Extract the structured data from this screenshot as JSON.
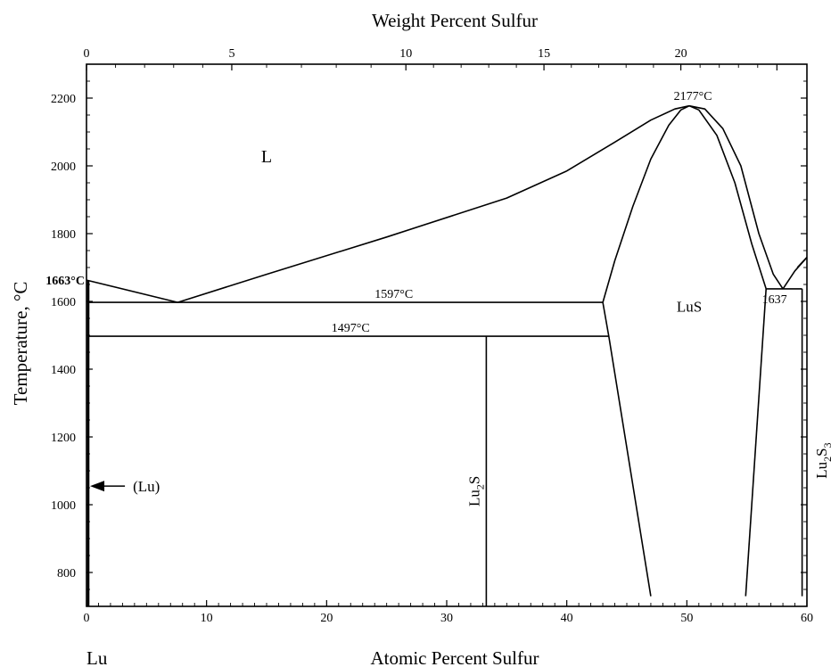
{
  "chart_data": {
    "type": "phase-diagram",
    "xlabel": "Atomic Percent Sulfur",
    "x2label": "Weight Percent Sulfur",
    "ylabel": "Temperature, °C",
    "xlim": [
      0,
      60
    ],
    "ylim": [
      700,
      2300
    ],
    "x_ticks": [
      0,
      10,
      20,
      30,
      40,
      50,
      60
    ],
    "x_tick_labels": [
      "0",
      "10",
      "20",
      "30",
      "40",
      "50",
      "60"
    ],
    "x2_ticks_at": [
      0,
      12.1,
      26.6,
      38.1,
      49.5,
      57.5
    ],
    "x2_tick_labels": [
      "0",
      "5",
      "10",
      "15",
      "20",
      ""
    ],
    "y_ticks": [
      800,
      1000,
      1200,
      1400,
      1600,
      1800,
      2000,
      2200
    ],
    "y_tick_labels": [
      "800",
      "1000",
      "1200",
      "1400",
      "1600",
      "1800",
      "2000",
      "2200"
    ],
    "left_end_label": "Lu",
    "lines": [
      {
        "name": "liquidus-left",
        "points": [
          [
            0,
            1663
          ],
          [
            7.6,
            1597
          ]
        ]
      },
      {
        "name": "liquidus-main",
        "points": [
          [
            7.6,
            1597
          ],
          [
            15,
            1680
          ],
          [
            25,
            1790
          ],
          [
            35,
            1905
          ],
          [
            40,
            1985
          ],
          [
            44,
            2070
          ],
          [
            47,
            2135
          ],
          [
            49,
            2168
          ],
          [
            50.2,
            2177
          ]
        ]
      },
      {
        "name": "lus-liquidus-right",
        "points": [
          [
            50.2,
            2177
          ],
          [
            51.5,
            2168
          ],
          [
            53,
            2110
          ],
          [
            54.5,
            2000
          ],
          [
            56,
            1800
          ],
          [
            57.2,
            1680
          ],
          [
            58,
            1637
          ]
        ]
      },
      {
        "name": "lus-solidus-left",
        "points": [
          [
            43,
            1597
          ],
          [
            44,
            1720
          ],
          [
            45.5,
            1880
          ],
          [
            47,
            2020
          ],
          [
            48.5,
            2120
          ],
          [
            49.5,
            2165
          ],
          [
            50.2,
            2177
          ]
        ]
      },
      {
        "name": "lus-solidus-right",
        "points": [
          [
            50.2,
            2177
          ],
          [
            51,
            2165
          ],
          [
            52.5,
            2090
          ],
          [
            54,
            1950
          ],
          [
            55.4,
            1770
          ],
          [
            56.6,
            1637
          ]
        ]
      },
      {
        "name": "lus-left-boundary",
        "points": [
          [
            43,
            1597
          ],
          [
            43.5,
            1497
          ],
          [
            47,
            730
          ]
        ]
      },
      {
        "name": "lus-right-boundary",
        "points": [
          [
            56.6,
            1637
          ],
          [
            54.9,
            730
          ]
        ]
      },
      {
        "name": "liquidus-far-right",
        "points": [
          [
            58,
            1637
          ],
          [
            59,
            1690
          ],
          [
            60,
            1730
          ]
        ]
      },
      {
        "name": "lu2s3-solvus",
        "points": [
          [
            59.2,
            1700
          ],
          [
            60,
            1730
          ]
        ]
      },
      {
        "name": "eutectic-1597",
        "points": [
          [
            0.15,
            1597
          ],
          [
            43,
            1597
          ]
        ]
      },
      {
        "name": "peritectoid-1497",
        "points": [
          [
            0.15,
            1497
          ],
          [
            43.5,
            1497
          ]
        ]
      },
      {
        "name": "eutectic-1637",
        "points": [
          [
            56.6,
            1637
          ],
          [
            59.6,
            1637
          ]
        ]
      },
      {
        "name": "lu2s-line",
        "points": [
          [
            33.3,
            1497
          ],
          [
            33.3,
            700
          ]
        ]
      },
      {
        "name": "lu2s3-line",
        "points": [
          [
            59.6,
            1637
          ],
          [
            59.6,
            730
          ]
        ]
      },
      {
        "name": "lu-solvus",
        "points": [
          [
            0.15,
            1663
          ],
          [
            0.15,
            700
          ]
        ]
      }
    ],
    "annotations": [
      {
        "text": "L",
        "x": 15,
        "y": 2010,
        "style": "phase-big"
      },
      {
        "text": "LuS",
        "x": 50.2,
        "y": 1570,
        "style": "phase"
      },
      {
        "text": "1663°C",
        "x": 0,
        "y": 1663,
        "style": "bold"
      },
      {
        "text": "1597°C",
        "x": 25.6,
        "y": 1610
      },
      {
        "text": "1497°C",
        "x": 22,
        "y": 1510
      },
      {
        "text": "2177°C",
        "x": 50.5,
        "y": 2195
      },
      {
        "text": "1637",
        "x": 57.3,
        "y": 1595
      }
    ],
    "phase_labels_vertical": [
      {
        "base": "Lu",
        "sub": "2",
        "tail": "S",
        "x": 33.3,
        "y": 1040
      },
      {
        "base": "Lu",
        "sub": "2",
        "tail": "S",
        "sub2": "3",
        "x": 60,
        "y": 1130
      }
    ],
    "arrow_label": {
      "text": "(Lu)",
      "x_from": 3.2,
      "x_to": 0.15,
      "y": 1055
    }
  }
}
